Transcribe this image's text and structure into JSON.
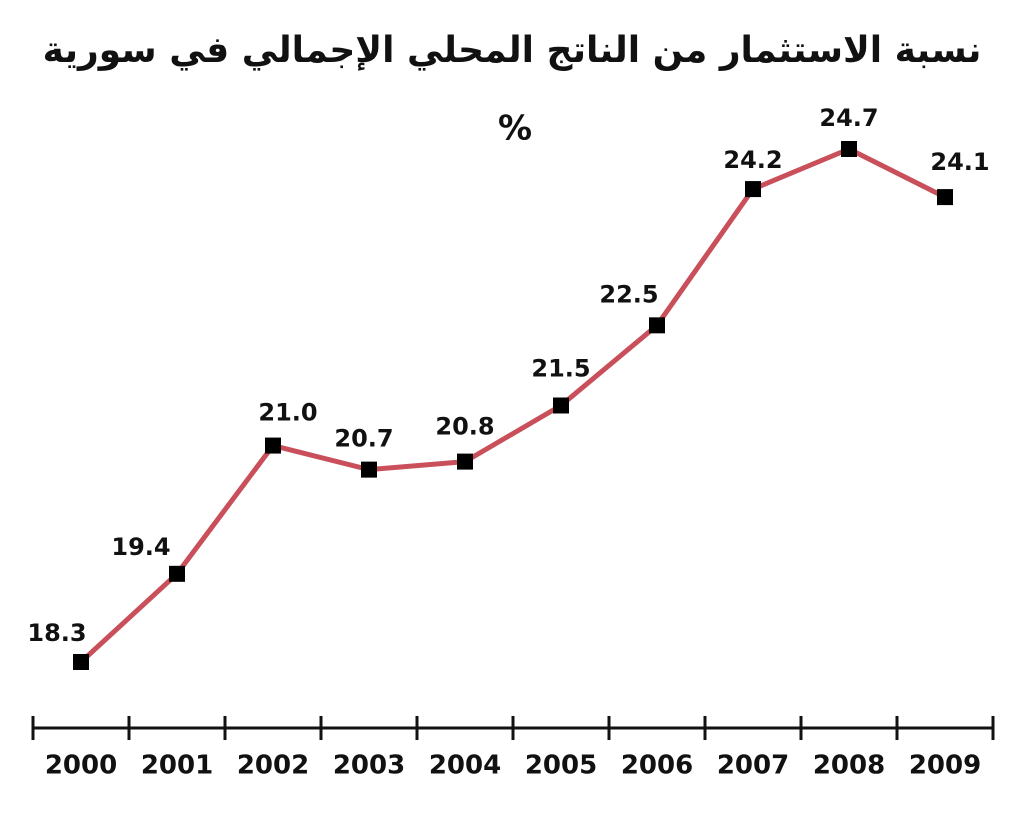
{
  "chart_data": {
    "type": "line",
    "title": "نسبة الاستثمار من الناتج المحلي الإجمالي في سورية",
    "subtitle": "%",
    "categories": [
      "2000",
      "2001",
      "2002",
      "2003",
      "2004",
      "2005",
      "2006",
      "2007",
      "2008",
      "2009"
    ],
    "series": [
      {
        "color": "#c9505a",
        "values": [
          18.3,
          19.4,
          21.0,
          20.7,
          20.8,
          21.5,
          22.5,
          24.2,
          24.7,
          24.1
        ],
        "value_labels": [
          "18.3",
          "19.4",
          "21.0",
          "20.7",
          "20.8",
          "21.5",
          "22.5",
          "24.2",
          "24.7",
          "24.1"
        ]
      }
    ]
  }
}
